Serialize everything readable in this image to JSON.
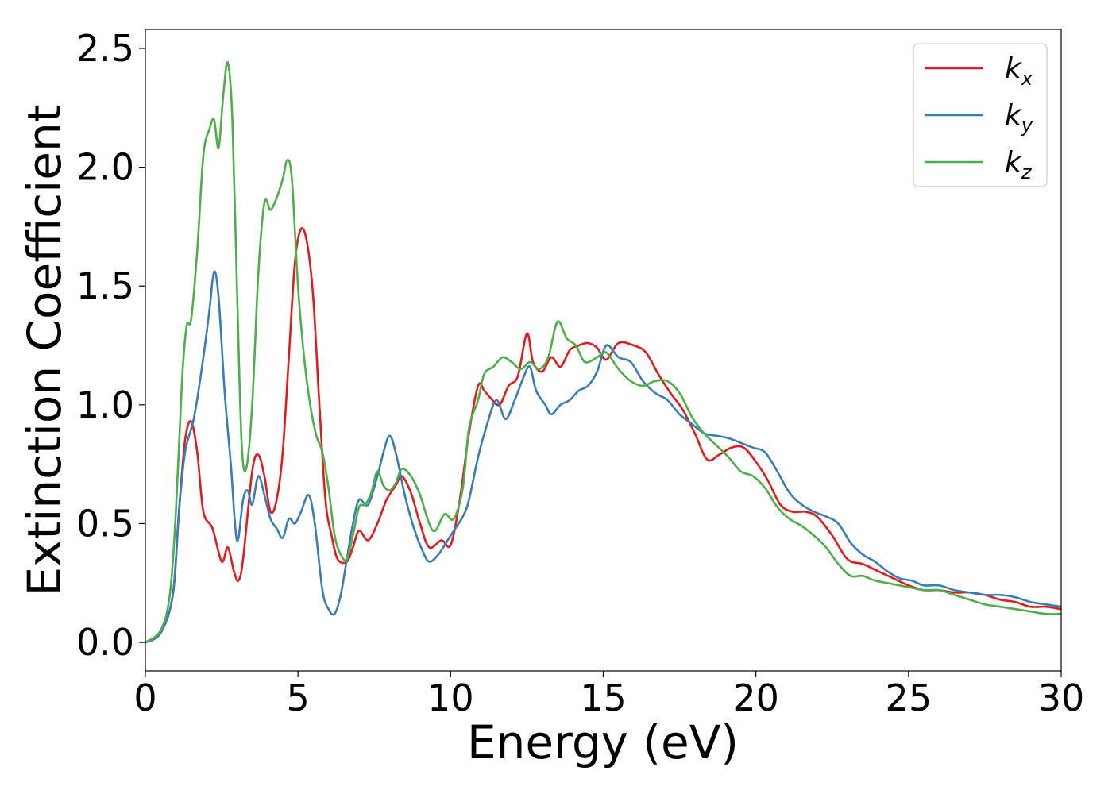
{
  "chart_data": {
    "type": "line",
    "title": "",
    "xlabel": "Energy (eV)",
    "ylabel": "Extinction Coefficient",
    "xlim": [
      0,
      30
    ],
    "ylim": [
      -0.12,
      2.58
    ],
    "xticks": [
      0,
      5,
      10,
      15,
      20,
      25,
      30
    ],
    "yticks": [
      0.0,
      0.5,
      1.0,
      1.5,
      2.0,
      2.5
    ],
    "xtick_labels": [
      "0",
      "5",
      "10",
      "15",
      "20",
      "25",
      "30"
    ],
    "ytick_labels": [
      "0.0",
      "0.5",
      "1.0",
      "1.5",
      "2.0",
      "2.5"
    ],
    "grid": false,
    "legend_position": "top-right",
    "series": [
      {
        "name": "k",
        "sub": "x",
        "color": "#e41a1c",
        "points": [
          [
            0,
            0
          ],
          [
            0.5,
            0.04
          ],
          [
            0.9,
            0.2
          ],
          [
            1.1,
            0.55
          ],
          [
            1.3,
            0.85
          ],
          [
            1.5,
            0.93
          ],
          [
            1.7,
            0.8
          ],
          [
            1.9,
            0.55
          ],
          [
            2.2,
            0.48
          ],
          [
            2.5,
            0.34
          ],
          [
            2.7,
            0.4
          ],
          [
            2.9,
            0.3
          ],
          [
            3.05,
            0.26
          ],
          [
            3.2,
            0.35
          ],
          [
            3.5,
            0.72
          ],
          [
            3.7,
            0.79
          ],
          [
            3.9,
            0.7
          ],
          [
            4.1,
            0.55
          ],
          [
            4.3,
            0.6
          ],
          [
            4.5,
            0.8
          ],
          [
            4.7,
            1.2
          ],
          [
            4.9,
            1.6
          ],
          [
            5.1,
            1.74
          ],
          [
            5.3,
            1.68
          ],
          [
            5.5,
            1.45
          ],
          [
            5.7,
            1.0
          ],
          [
            5.9,
            0.6
          ],
          [
            6.1,
            0.45
          ],
          [
            6.3,
            0.35
          ],
          [
            6.6,
            0.34
          ],
          [
            6.8,
            0.4
          ],
          [
            7.0,
            0.47
          ],
          [
            7.3,
            0.43
          ],
          [
            7.6,
            0.5
          ],
          [
            7.9,
            0.6
          ],
          [
            8.2,
            0.66
          ],
          [
            8.4,
            0.7
          ],
          [
            8.7,
            0.63
          ],
          [
            9.0,
            0.5
          ],
          [
            9.3,
            0.4
          ],
          [
            9.7,
            0.43
          ],
          [
            10.0,
            0.41
          ],
          [
            10.3,
            0.6
          ],
          [
            10.6,
            0.88
          ],
          [
            10.9,
            1.08
          ],
          [
            11.1,
            1.06
          ],
          [
            11.3,
            1.03
          ],
          [
            11.6,
            1.0
          ],
          [
            11.9,
            1.08
          ],
          [
            12.2,
            1.12
          ],
          [
            12.5,
            1.3
          ],
          [
            12.7,
            1.18
          ],
          [
            13.0,
            1.14
          ],
          [
            13.3,
            1.2
          ],
          [
            13.6,
            1.16
          ],
          [
            13.9,
            1.23
          ],
          [
            14.2,
            1.25
          ],
          [
            14.5,
            1.26
          ],
          [
            14.8,
            1.24
          ],
          [
            15.1,
            1.19
          ],
          [
            15.5,
            1.26
          ],
          [
            16.0,
            1.25
          ],
          [
            16.4,
            1.22
          ],
          [
            16.8,
            1.13
          ],
          [
            17.2,
            1.05
          ],
          [
            17.6,
            0.98
          ],
          [
            18.0,
            0.88
          ],
          [
            18.4,
            0.77
          ],
          [
            18.8,
            0.79
          ],
          [
            19.2,
            0.82
          ],
          [
            19.6,
            0.82
          ],
          [
            20.0,
            0.76
          ],
          [
            20.4,
            0.68
          ],
          [
            20.8,
            0.58
          ],
          [
            21.2,
            0.55
          ],
          [
            21.6,
            0.55
          ],
          [
            22.0,
            0.53
          ],
          [
            22.5,
            0.45
          ],
          [
            23.0,
            0.35
          ],
          [
            23.5,
            0.33
          ],
          [
            24.0,
            0.3
          ],
          [
            24.5,
            0.27
          ],
          [
            25.0,
            0.24
          ],
          [
            25.5,
            0.22
          ],
          [
            26.0,
            0.22
          ],
          [
            26.5,
            0.21
          ],
          [
            27.0,
            0.21
          ],
          [
            27.5,
            0.2
          ],
          [
            28.0,
            0.18
          ],
          [
            28.5,
            0.17
          ],
          [
            29.0,
            0.15
          ],
          [
            29.5,
            0.15
          ],
          [
            30.0,
            0.14
          ]
        ]
      },
      {
        "name": "k",
        "sub": "y",
        "color": "#377eb8",
        "points": [
          [
            0,
            0
          ],
          [
            0.5,
            0.04
          ],
          [
            0.9,
            0.2
          ],
          [
            1.1,
            0.55
          ],
          [
            1.3,
            0.8
          ],
          [
            1.6,
            0.95
          ],
          [
            1.9,
            1.2
          ],
          [
            2.1,
            1.4
          ],
          [
            2.25,
            1.56
          ],
          [
            2.4,
            1.45
          ],
          [
            2.6,
            1.05
          ],
          [
            2.8,
            0.75
          ],
          [
            3.0,
            0.43
          ],
          [
            3.2,
            0.6
          ],
          [
            3.35,
            0.64
          ],
          [
            3.5,
            0.58
          ],
          [
            3.7,
            0.7
          ],
          [
            3.9,
            0.62
          ],
          [
            4.1,
            0.52
          ],
          [
            4.3,
            0.48
          ],
          [
            4.5,
            0.44
          ],
          [
            4.7,
            0.52
          ],
          [
            4.9,
            0.5
          ],
          [
            5.1,
            0.55
          ],
          [
            5.35,
            0.62
          ],
          [
            5.55,
            0.5
          ],
          [
            5.8,
            0.22
          ],
          [
            6.0,
            0.14
          ],
          [
            6.2,
            0.12
          ],
          [
            6.4,
            0.2
          ],
          [
            6.6,
            0.35
          ],
          [
            6.8,
            0.5
          ],
          [
            7.0,
            0.6
          ],
          [
            7.3,
            0.58
          ],
          [
            7.6,
            0.7
          ],
          [
            7.8,
            0.8
          ],
          [
            8.0,
            0.87
          ],
          [
            8.2,
            0.8
          ],
          [
            8.5,
            0.62
          ],
          [
            8.8,
            0.48
          ],
          [
            9.1,
            0.38
          ],
          [
            9.3,
            0.34
          ],
          [
            9.6,
            0.37
          ],
          [
            10.0,
            0.45
          ],
          [
            10.4,
            0.53
          ],
          [
            10.6,
            0.6
          ],
          [
            10.9,
            0.78
          ],
          [
            11.2,
            0.92
          ],
          [
            11.5,
            1.02
          ],
          [
            11.8,
            0.94
          ],
          [
            12.1,
            1.02
          ],
          [
            12.4,
            1.12
          ],
          [
            12.6,
            1.16
          ],
          [
            12.8,
            1.06
          ],
          [
            13.1,
            1.0
          ],
          [
            13.3,
            0.96
          ],
          [
            13.6,
            1.0
          ],
          [
            13.9,
            1.02
          ],
          [
            14.2,
            1.06
          ],
          [
            14.5,
            1.08
          ],
          [
            14.8,
            1.14
          ],
          [
            15.1,
            1.25
          ],
          [
            15.5,
            1.2
          ],
          [
            15.9,
            1.18
          ],
          [
            16.3,
            1.1
          ],
          [
            16.7,
            1.05
          ],
          [
            17.1,
            1.02
          ],
          [
            17.5,
            0.96
          ],
          [
            17.9,
            0.92
          ],
          [
            18.3,
            0.88
          ],
          [
            18.7,
            0.87
          ],
          [
            19.1,
            0.86
          ],
          [
            19.5,
            0.84
          ],
          [
            19.9,
            0.82
          ],
          [
            20.3,
            0.8
          ],
          [
            20.7,
            0.72
          ],
          [
            21.1,
            0.63
          ],
          [
            21.5,
            0.58
          ],
          [
            21.9,
            0.55
          ],
          [
            22.3,
            0.53
          ],
          [
            22.7,
            0.5
          ],
          [
            23.1,
            0.42
          ],
          [
            23.5,
            0.37
          ],
          [
            23.9,
            0.34
          ],
          [
            24.3,
            0.3
          ],
          [
            24.7,
            0.27
          ],
          [
            25.1,
            0.26
          ],
          [
            25.5,
            0.24
          ],
          [
            26.0,
            0.24
          ],
          [
            26.5,
            0.22
          ],
          [
            27.0,
            0.21
          ],
          [
            27.5,
            0.2
          ],
          [
            28.0,
            0.2
          ],
          [
            28.5,
            0.19
          ],
          [
            29.0,
            0.17
          ],
          [
            29.5,
            0.16
          ],
          [
            30.0,
            0.15
          ]
        ]
      },
      {
        "name": "k",
        "sub": "z",
        "color": "#4daf4a",
        "points": [
          [
            0,
            0
          ],
          [
            0.5,
            0.05
          ],
          [
            0.8,
            0.2
          ],
          [
            1.0,
            0.55
          ],
          [
            1.2,
            1.1
          ],
          [
            1.35,
            1.33
          ],
          [
            1.5,
            1.36
          ],
          [
            1.7,
            1.65
          ],
          [
            1.9,
            2.05
          ],
          [
            2.1,
            2.16
          ],
          [
            2.25,
            2.2
          ],
          [
            2.4,
            2.08
          ],
          [
            2.55,
            2.3
          ],
          [
            2.7,
            2.44
          ],
          [
            2.85,
            2.2
          ],
          [
            3.0,
            1.5
          ],
          [
            3.15,
            0.85
          ],
          [
            3.3,
            0.73
          ],
          [
            3.5,
            1.0
          ],
          [
            3.7,
            1.55
          ],
          [
            3.9,
            1.85
          ],
          [
            4.1,
            1.82
          ],
          [
            4.3,
            1.87
          ],
          [
            4.5,
            1.95
          ],
          [
            4.65,
            2.03
          ],
          [
            4.8,
            1.95
          ],
          [
            5.0,
            1.5
          ],
          [
            5.2,
            1.2
          ],
          [
            5.4,
            1.0
          ],
          [
            5.6,
            0.87
          ],
          [
            5.8,
            0.8
          ],
          [
            6.0,
            0.65
          ],
          [
            6.2,
            0.45
          ],
          [
            6.4,
            0.37
          ],
          [
            6.6,
            0.35
          ],
          [
            6.8,
            0.45
          ],
          [
            7.0,
            0.57
          ],
          [
            7.2,
            0.58
          ],
          [
            7.4,
            0.63
          ],
          [
            7.6,
            0.72
          ],
          [
            7.8,
            0.66
          ],
          [
            8.0,
            0.64
          ],
          [
            8.2,
            0.67
          ],
          [
            8.4,
            0.73
          ],
          [
            8.7,
            0.7
          ],
          [
            9.0,
            0.62
          ],
          [
            9.3,
            0.5
          ],
          [
            9.5,
            0.47
          ],
          [
            9.8,
            0.54
          ],
          [
            10.1,
            0.52
          ],
          [
            10.4,
            0.65
          ],
          [
            10.6,
            0.9
          ],
          [
            10.9,
            1.02
          ],
          [
            11.1,
            1.13
          ],
          [
            11.4,
            1.16
          ],
          [
            11.7,
            1.2
          ],
          [
            12.0,
            1.18
          ],
          [
            12.3,
            1.15
          ],
          [
            12.6,
            1.18
          ],
          [
            12.9,
            1.15
          ],
          [
            13.2,
            1.2
          ],
          [
            13.5,
            1.35
          ],
          [
            13.8,
            1.28
          ],
          [
            14.1,
            1.25
          ],
          [
            14.4,
            1.18
          ],
          [
            14.8,
            1.2
          ],
          [
            15.1,
            1.22
          ],
          [
            15.5,
            1.15
          ],
          [
            15.9,
            1.1
          ],
          [
            16.3,
            1.08
          ],
          [
            16.7,
            1.1
          ],
          [
            17.1,
            1.1
          ],
          [
            17.5,
            1.05
          ],
          [
            17.9,
            0.95
          ],
          [
            18.3,
            0.88
          ],
          [
            18.7,
            0.83
          ],
          [
            19.1,
            0.78
          ],
          [
            19.5,
            0.72
          ],
          [
            19.9,
            0.7
          ],
          [
            20.3,
            0.65
          ],
          [
            20.7,
            0.57
          ],
          [
            21.1,
            0.52
          ],
          [
            21.5,
            0.49
          ],
          [
            21.9,
            0.45
          ],
          [
            22.3,
            0.4
          ],
          [
            22.7,
            0.33
          ],
          [
            23.1,
            0.28
          ],
          [
            23.5,
            0.28
          ],
          [
            23.9,
            0.26
          ],
          [
            24.3,
            0.25
          ],
          [
            24.7,
            0.24
          ],
          [
            25.1,
            0.23
          ],
          [
            25.5,
            0.22
          ],
          [
            26.0,
            0.22
          ],
          [
            26.5,
            0.2
          ],
          [
            27.0,
            0.18
          ],
          [
            27.5,
            0.16
          ],
          [
            28.0,
            0.15
          ],
          [
            28.5,
            0.14
          ],
          [
            29.0,
            0.13
          ],
          [
            29.5,
            0.12
          ],
          [
            30.0,
            0.12
          ]
        ]
      }
    ]
  }
}
